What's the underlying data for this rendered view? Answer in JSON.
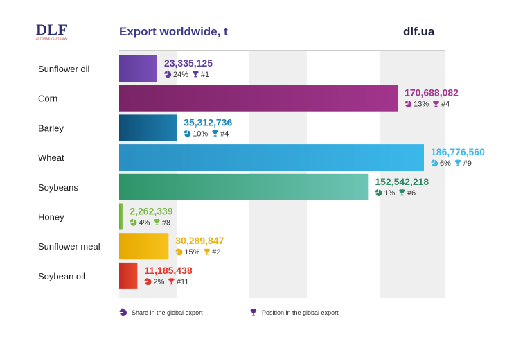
{
  "header": {
    "logo": "DLF",
    "logo_tagline": "ATTORNEYS-AT-LAW",
    "title": "Export worldwide, t",
    "site": "dlf.ua"
  },
  "legend": {
    "share_label": "Share in the global export",
    "position_label": "Position in the global export",
    "icon_color": "#5b2d8c"
  },
  "chart_data": {
    "type": "bar",
    "orientation": "horizontal",
    "title": "Export worldwide, t",
    "xlim": [
      0,
      200000000
    ],
    "grid": true,
    "categories": [
      "Sunflower oil",
      "Corn",
      "Barley",
      "Wheat",
      "Soybeans",
      "Honey",
      "Sunflower meal",
      "Soybean oil"
    ],
    "values": [
      23335125,
      170688082,
      35312736,
      186776560,
      152542218,
      2262339,
      30289847,
      11185438
    ],
    "value_labels": [
      "23,335,125",
      "170,688,082",
      "35,312,736",
      "186,776,560",
      "152,542,218",
      "2,262,339",
      "30,289,847",
      "11,185,438"
    ],
    "share_labels": [
      "24%",
      "13%",
      "10%",
      "6%",
      "1%",
      "4%",
      "15%",
      "2%"
    ],
    "position_labels": [
      "#1",
      "#4",
      "#4",
      "#9",
      "#6",
      "#8",
      "#2",
      "#11"
    ],
    "colors": [
      [
        "#5f3d9c",
        "#7a4fb8"
      ],
      [
        "#7a2466",
        "#a2358d"
      ],
      [
        "#0f4f78",
        "#1e7fb0"
      ],
      [
        "#2a8fc2",
        "#3bb8eb"
      ],
      [
        "#2e9468",
        "#6dc4b4"
      ],
      [
        "#6cae3a",
        "#86c24e"
      ],
      [
        "#e6a800",
        "#f7c21a"
      ],
      [
        "#c72b1e",
        "#e84a2f"
      ]
    ],
    "label_colors": [
      "#5f3d9c",
      "#a2358d",
      "#1d86b8",
      "#3bb8eb",
      "#2e8a63",
      "#7bb843",
      "#e8b20c",
      "#e2352a"
    ]
  }
}
